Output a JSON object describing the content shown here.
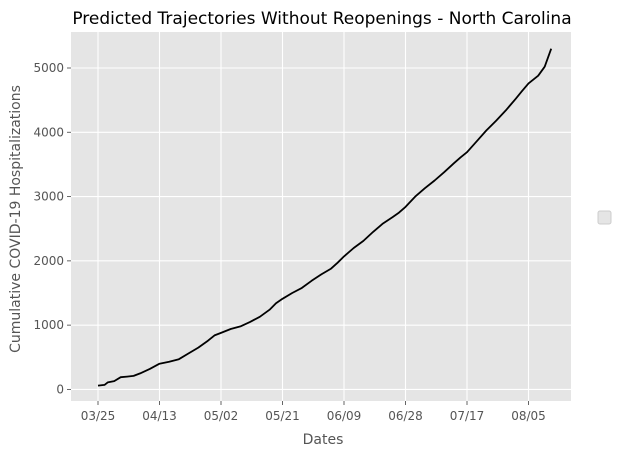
{
  "chart_data": {
    "type": "line",
    "title": "Predicted Trajectories Without Reopenings - North Carolina",
    "xlabel": "Dates",
    "ylabel": "Cumulative COVID-19 Hospitalizations",
    "x_tick_labels": [
      "03/25",
      "04/13",
      "05/02",
      "05/21",
      "06/09",
      "06/28",
      "07/17",
      "08/05"
    ],
    "y_ticks": [
      0,
      1000,
      2000,
      3000,
      4000,
      5000
    ],
    "ylim": [
      -180,
      5560
    ],
    "grid": true,
    "legend": "right (empty legend box)",
    "colors": {
      "background": "#e5e5e5",
      "grid": "#ffffff",
      "line": "#000000"
    },
    "series": [
      {
        "color": "#000000",
        "x": [
          "03/25",
          "03/27",
          "03/28",
          "03/30",
          "04/01",
          "04/03",
          "04/05",
          "04/07",
          "04/10",
          "04/13",
          "04/16",
          "04/19",
          "04/22",
          "04/25",
          "04/28",
          "04/30",
          "05/02",
          "05/05",
          "05/08",
          "05/11",
          "05/14",
          "05/17",
          "05/19",
          "05/21",
          "05/24",
          "05/27",
          "05/30",
          "06/02",
          "06/05",
          "06/07",
          "06/09",
          "06/12",
          "06/15",
          "06/18",
          "06/21",
          "06/24",
          "06/26",
          "06/28",
          "07/01",
          "07/04",
          "07/07",
          "07/10",
          "07/13",
          "07/15",
          "07/17",
          "07/20",
          "07/23",
          "07/26",
          "07/29",
          "08/01",
          "08/03",
          "08/05",
          "08/08",
          "08/10",
          "08/12"
        ],
        "values": [
          60,
          70,
          110,
          130,
          190,
          200,
          210,
          250,
          320,
          400,
          430,
          470,
          560,
          650,
          760,
          840,
          880,
          940,
          980,
          1050,
          1130,
          1240,
          1340,
          1410,
          1500,
          1580,
          1690,
          1790,
          1880,
          1970,
          2070,
          2200,
          2310,
          2450,
          2580,
          2680,
          2750,
          2840,
          3000,
          3130,
          3250,
          3380,
          3520,
          3610,
          3690,
          3860,
          4030,
          4180,
          4340,
          4520,
          4640,
          4760,
          4880,
          5020,
          5300
        ]
      }
    ]
  }
}
